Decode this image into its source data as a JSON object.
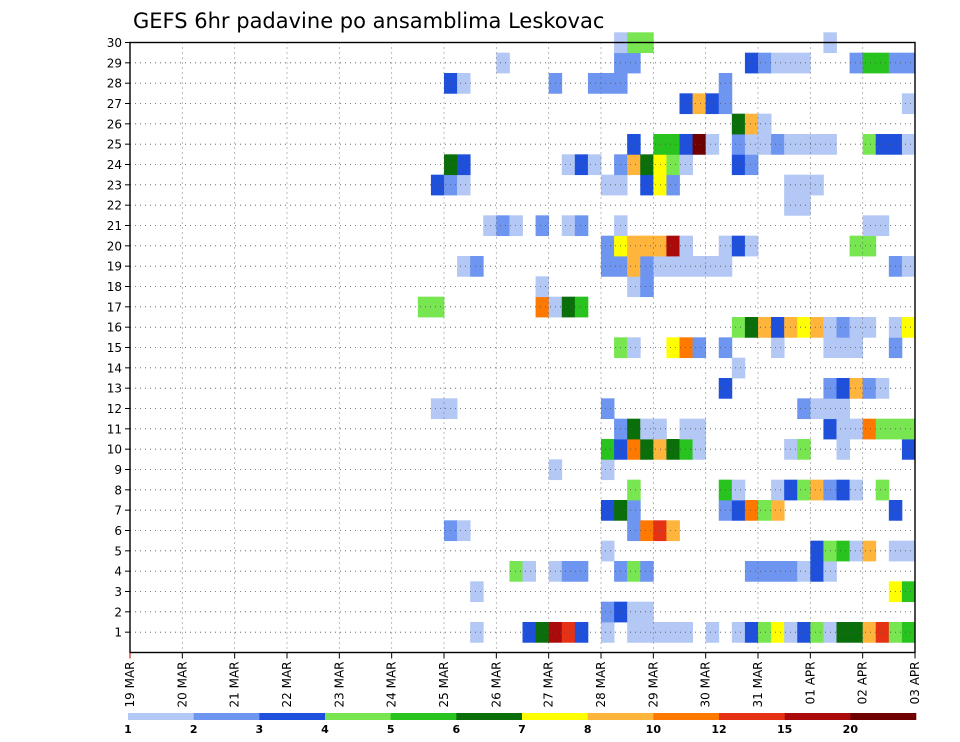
{
  "chart_data": {
    "type": "heatmap",
    "title": "GEFS 6hr padavine po ansamblima Leskovac",
    "x_tick_labels": [
      "19 MAR",
      "20 MAR",
      "21 MAR",
      "22 MAR",
      "23 MAR",
      "24 MAR",
      "25 MAR",
      "26 MAR",
      "27 MAR",
      "28 MAR",
      "29 MAR",
      "30 MAR",
      "31 MAR",
      "01 APR",
      "02 APR",
      "03 APR"
    ],
    "x_range_steps": [
      0,
      60
    ],
    "steps_per_day": 4,
    "y_tick_labels": [
      1,
      2,
      3,
      4,
      5,
      6,
      7,
      8,
      9,
      10,
      11,
      12,
      13,
      14,
      15,
      16,
      17,
      18,
      19,
      20,
      21,
      22,
      23,
      24,
      25,
      26,
      27,
      28,
      29,
      30
    ],
    "y_range": [
      0,
      30
    ],
    "grid": true,
    "legend": {
      "placement": "bottom",
      "labels": [
        "1",
        "2",
        "3",
        "4",
        "5",
        "6",
        "7",
        "8",
        "10",
        "12",
        "15",
        "20"
      ],
      "colors": [
        "#b4c8f5",
        "#6e96f0",
        "#1e50dc",
        "#78e650",
        "#28c31e",
        "#0a6e0a",
        "#ffff00",
        "#ffb43c",
        "#ff7800",
        "#e63214",
        "#aa0a0a",
        "#6e0000"
      ]
    },
    "class_colors": [
      "#b4c8f5",
      "#6e96f0",
      "#1e50dc",
      "#78e650",
      "#28c31e",
      "#0a6e0a",
      "#ffff00",
      "#ffb43c",
      "#ff7800",
      "#e63214",
      "#aa0a0a",
      "#6e0000"
    ],
    "cells_by_member": {
      "1": [
        [
          27,
          1
        ],
        [
          31,
          3
        ],
        [
          32,
          6
        ],
        [
          33,
          11
        ],
        [
          34,
          10
        ],
        [
          35,
          3
        ],
        [
          37,
          1
        ],
        [
          39,
          1
        ],
        [
          40,
          1
        ],
        [
          41,
          1
        ],
        [
          42,
          1
        ],
        [
          43,
          1
        ],
        [
          45,
          1
        ],
        [
          47,
          1
        ],
        [
          48,
          3
        ],
        [
          49,
          4
        ],
        [
          50,
          7
        ],
        [
          51,
          1
        ],
        [
          52,
          3
        ],
        [
          53,
          4
        ],
        [
          54,
          1
        ],
        [
          55,
          6
        ],
        [
          56,
          6
        ],
        [
          57,
          8
        ],
        [
          58,
          10
        ],
        [
          59,
          4
        ],
        [
          60,
          5
        ]
      ],
      "2": [
        [
          37,
          2
        ],
        [
          38,
          3
        ],
        [
          39,
          1
        ],
        [
          40,
          1
        ]
      ],
      "3": [
        [
          27,
          1
        ],
        [
          59,
          7
        ],
        [
          60,
          5
        ]
      ],
      "4": [
        [
          30,
          4
        ],
        [
          31,
          1
        ],
        [
          33,
          1
        ],
        [
          34,
          2
        ],
        [
          35,
          2
        ],
        [
          38,
          2
        ],
        [
          39,
          4
        ],
        [
          40,
          2
        ],
        [
          48,
          2
        ],
        [
          49,
          2
        ],
        [
          50,
          2
        ],
        [
          51,
          2
        ],
        [
          52,
          1
        ],
        [
          53,
          3
        ],
        [
          54,
          1
        ]
      ],
      "5": [
        [
          37,
          1
        ],
        [
          53,
          3
        ],
        [
          54,
          4
        ],
        [
          55,
          5
        ],
        [
          56,
          1
        ],
        [
          57,
          8
        ],
        [
          59,
          1
        ],
        [
          60,
          1
        ]
      ],
      "6": [
        [
          25,
          2
        ],
        [
          26,
          1
        ],
        [
          39,
          2
        ],
        [
          40,
          9
        ],
        [
          41,
          10
        ],
        [
          42,
          8
        ]
      ],
      "7": [
        [
          37,
          3
        ],
        [
          38,
          6
        ],
        [
          39,
          2
        ],
        [
          46,
          2
        ],
        [
          47,
          3
        ],
        [
          48,
          9
        ],
        [
          49,
          4
        ],
        [
          50,
          8
        ],
        [
          59,
          3
        ]
      ],
      "8": [
        [
          39,
          4
        ],
        [
          46,
          5
        ],
        [
          47,
          1
        ],
        [
          50,
          1
        ],
        [
          51,
          3
        ],
        [
          52,
          4
        ],
        [
          53,
          8
        ],
        [
          54,
          2
        ],
        [
          55,
          3
        ],
        [
          56,
          1
        ],
        [
          58,
          4
        ]
      ],
      "9": [
        [
          33,
          1
        ],
        [
          37,
          1
        ]
      ],
      "10": [
        [
          37,
          5
        ],
        [
          38,
          3
        ],
        [
          39,
          9
        ],
        [
          40,
          6
        ],
        [
          41,
          8
        ],
        [
          42,
          6
        ],
        [
          43,
          5
        ],
        [
          44,
          1
        ],
        [
          51,
          1
        ],
        [
          52,
          4
        ],
        [
          55,
          1
        ],
        [
          60,
          3
        ]
      ],
      "11": [
        [
          38,
          2
        ],
        [
          39,
          6
        ],
        [
          40,
          1
        ],
        [
          41,
          1
        ],
        [
          43,
          1
        ],
        [
          44,
          1
        ],
        [
          54,
          3
        ],
        [
          55,
          1
        ],
        [
          56,
          1
        ],
        [
          57,
          9
        ],
        [
          58,
          4
        ],
        [
          59,
          4
        ],
        [
          60,
          4
        ]
      ],
      "12": [
        [
          24,
          1
        ],
        [
          25,
          1
        ],
        [
          37,
          2
        ],
        [
          52,
          2
        ],
        [
          53,
          1
        ],
        [
          54,
          1
        ],
        [
          55,
          1
        ]
      ],
      "13": [
        [
          46,
          3
        ],
        [
          54,
          2
        ],
        [
          55,
          3
        ],
        [
          56,
          8
        ],
        [
          57,
          2
        ],
        [
          58,
          1
        ]
      ],
      "14": [
        [
          47,
          1
        ]
      ],
      "15": [
        [
          38,
          4
        ],
        [
          39,
          1
        ],
        [
          42,
          7
        ],
        [
          43,
          9
        ],
        [
          44,
          2
        ],
        [
          46,
          2
        ],
        [
          50,
          1
        ],
        [
          54,
          1
        ],
        [
          55,
          1
        ],
        [
          56,
          1
        ],
        [
          59,
          2
        ]
      ],
      "16": [
        [
          47,
          4
        ],
        [
          48,
          6
        ],
        [
          49,
          8
        ],
        [
          50,
          3
        ],
        [
          51,
          8
        ],
        [
          52,
          7
        ],
        [
          53,
          8
        ],
        [
          54,
          1
        ],
        [
          55,
          2
        ],
        [
          56,
          1
        ],
        [
          57,
          1
        ],
        [
          59,
          1
        ],
        [
          60,
          7
        ]
      ],
      "17": [
        [
          23,
          4
        ],
        [
          24,
          4
        ],
        [
          32,
          9
        ],
        [
          33,
          1
        ],
        [
          34,
          6
        ],
        [
          35,
          5
        ]
      ],
      "18": [
        [
          32,
          1
        ],
        [
          39,
          1
        ],
        [
          40,
          2
        ]
      ],
      "19": [
        [
          26,
          1
        ],
        [
          27,
          2
        ],
        [
          37,
          2
        ],
        [
          38,
          2
        ],
        [
          39,
          8
        ],
        [
          40,
          2
        ],
        [
          41,
          1
        ],
        [
          42,
          1
        ],
        [
          43,
          1
        ],
        [
          44,
          1
        ],
        [
          45,
          1
        ],
        [
          46,
          1
        ],
        [
          59,
          2
        ],
        [
          60,
          1
        ]
      ],
      "20": [
        [
          37,
          2
        ],
        [
          38,
          7
        ],
        [
          39,
          8
        ],
        [
          40,
          8
        ],
        [
          41,
          8
        ],
        [
          42,
          11
        ],
        [
          43,
          1
        ],
        [
          46,
          1
        ],
        [
          47,
          3
        ],
        [
          48,
          1
        ],
        [
          56,
          4
        ],
        [
          57,
          4
        ]
      ],
      "21": [
        [
          28,
          1
        ],
        [
          29,
          2
        ],
        [
          30,
          1
        ],
        [
          32,
          2
        ],
        [
          34,
          1
        ],
        [
          35,
          2
        ],
        [
          38,
          1
        ],
        [
          57,
          1
        ],
        [
          58,
          1
        ]
      ],
      "22": [
        [
          51,
          1
        ],
        [
          52,
          1
        ]
      ],
      "23": [
        [
          24,
          3
        ],
        [
          25,
          2
        ],
        [
          26,
          1
        ],
        [
          37,
          1
        ],
        [
          38,
          1
        ],
        [
          40,
          3
        ],
        [
          41,
          7
        ],
        [
          42,
          2
        ],
        [
          51,
          1
        ],
        [
          52,
          1
        ],
        [
          53,
          1
        ]
      ],
      "24": [
        [
          25,
          6
        ],
        [
          26,
          3
        ],
        [
          34,
          1
        ],
        [
          35,
          3
        ],
        [
          36,
          1
        ],
        [
          38,
          2
        ],
        [
          39,
          8
        ],
        [
          40,
          6
        ],
        [
          41,
          7
        ],
        [
          42,
          4
        ],
        [
          43,
          1
        ],
        [
          47,
          3
        ],
        [
          48,
          2
        ]
      ],
      "25": [
        [
          39,
          3
        ],
        [
          41,
          5
        ],
        [
          42,
          5
        ],
        [
          43,
          3
        ],
        [
          44,
          12
        ],
        [
          45,
          1
        ],
        [
          47,
          2
        ],
        [
          48,
          1
        ],
        [
          49,
          1
        ],
        [
          50,
          2
        ],
        [
          51,
          1
        ],
        [
          52,
          1
        ],
        [
          53,
          1
        ],
        [
          54,
          1
        ],
        [
          57,
          4
        ],
        [
          58,
          3
        ],
        [
          59,
          3
        ],
        [
          60,
          1
        ]
      ],
      "26": [
        [
          47,
          6
        ],
        [
          48,
          8
        ],
        [
          49,
          1
        ]
      ],
      "27": [
        [
          43,
          3
        ],
        [
          44,
          8
        ],
        [
          45,
          3
        ],
        [
          46,
          2
        ],
        [
          60,
          1
        ]
      ],
      "28": [
        [
          25,
          3
        ],
        [
          26,
          1
        ],
        [
          33,
          2
        ],
        [
          36,
          2
        ],
        [
          37,
          2
        ],
        [
          38,
          2
        ],
        [
          46,
          2
        ]
      ],
      "29": [
        [
          29,
          1
        ],
        [
          38,
          2
        ],
        [
          39,
          2
        ],
        [
          48,
          3
        ],
        [
          49,
          2
        ],
        [
          50,
          1
        ],
        [
          51,
          1
        ],
        [
          52,
          1
        ],
        [
          56,
          2
        ],
        [
          57,
          5
        ],
        [
          58,
          5
        ],
        [
          59,
          2
        ],
        [
          60,
          2
        ]
      ],
      "30": [
        [
          38,
          1
        ],
        [
          39,
          4
        ],
        [
          40,
          4
        ],
        [
          54,
          1
        ]
      ]
    }
  }
}
